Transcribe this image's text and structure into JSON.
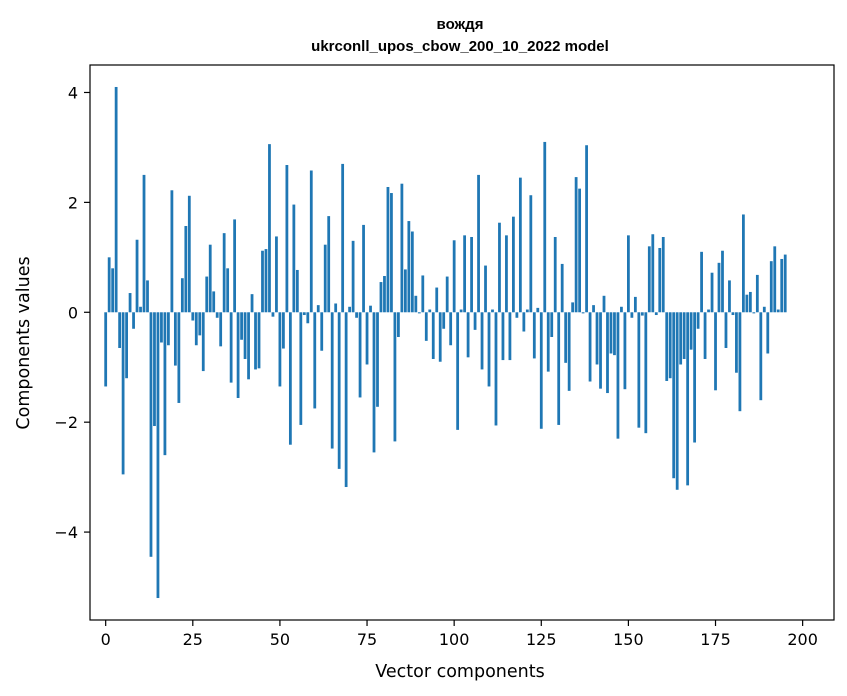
{
  "chart_data": {
    "type": "bar",
    "title_line1": "вождя",
    "title_line2": "ukrconll_upos_cbow_200_10_2022 model",
    "xlabel": "Vector components",
    "ylabel": "Components values",
    "xlim": [
      -4.5,
      209
    ],
    "ylim": [
      -5.6,
      4.5
    ],
    "x_ticks": [
      0,
      25,
      50,
      75,
      100,
      125,
      150,
      175,
      200
    ],
    "y_ticks": [
      -4,
      -2,
      0,
      2,
      4
    ],
    "y_tick_labels": [
      "−4",
      "−2",
      "0",
      "2",
      "4"
    ],
    "bar_color": "#1f77b4",
    "values": [
      -1.35,
      1.0,
      0.8,
      4.1,
      -0.65,
      -2.95,
      -1.2,
      0.35,
      -0.3,
      1.32,
      0.1,
      2.5,
      0.58,
      -4.45,
      -2.07,
      -5.2,
      -0.55,
      -2.6,
      -0.6,
      2.22,
      -0.97,
      -1.65,
      0.62,
      1.57,
      2.12,
      -0.15,
      -0.6,
      -0.42,
      -1.07,
      0.65,
      1.23,
      0.38,
      -0.1,
      -0.62,
      1.44,
      0.8,
      -1.28,
      1.69,
      -1.56,
      -0.5,
      -0.85,
      -1.22,
      0.33,
      -1.04,
      -1.02,
      1.12,
      1.15,
      3.06,
      -0.08,
      1.38,
      -1.35,
      -0.66,
      2.68,
      -2.41,
      1.96,
      0.77,
      -2.05,
      -0.05,
      -0.2,
      2.58,
      -1.75,
      0.13,
      -0.7,
      1.23,
      1.75,
      -2.48,
      0.16,
      -2.85,
      2.7,
      -3.18,
      0.1,
      1.3,
      -0.1,
      -1.55,
      1.59,
      -0.95,
      0.12,
      -2.55,
      -1.72,
      0.55,
      0.66,
      2.28,
      2.17,
      -2.35,
      -0.45,
      2.34,
      0.78,
      1.66,
      1.47,
      0.3,
      -0.02,
      0.67,
      -0.52,
      0.05,
      -0.85,
      0.45,
      -0.9,
      -0.3,
      0.65,
      -0.6,
      1.31,
      -2.14,
      0.05,
      1.4,
      -0.82,
      1.37,
      -0.32,
      2.5,
      -1.04,
      0.85,
      -1.35,
      0.05,
      -2.06,
      1.63,
      -0.87,
      1.4,
      -0.87,
      1.74,
      -0.1,
      2.45,
      -0.35,
      0.05,
      2.13,
      -0.84,
      0.08,
      -2.12,
      3.1,
      -1.08,
      -0.45,
      1.37,
      -2.05,
      0.88,
      -0.92,
      -1.43,
      0.18,
      2.46,
      2.25,
      -0.02,
      3.04,
      -1.26,
      0.13,
      -0.95,
      -1.39,
      0.3,
      -1.47,
      -0.75,
      -0.78,
      -2.3,
      0.1,
      -1.4,
      1.4,
      -0.1,
      0.28,
      -2.1,
      -0.06,
      -2.2,
      1.2,
      1.42,
      -0.05,
      1.17,
      1.37,
      -1.25,
      -1.2,
      -3.02,
      -3.23,
      -0.95,
      -0.85,
      -3.15,
      -0.68,
      -2.37,
      -0.3,
      1.1,
      -0.85,
      0.05,
      0.72,
      -1.42,
      0.9,
      1.12,
      -0.65,
      0.58,
      -0.05,
      -1.1,
      -1.8,
      1.78,
      0.32,
      0.37,
      -0.02,
      0.68,
      -1.6,
      0.1,
      -0.75,
      0.93,
      1.2,
      0.05,
      0.97,
      1.05
    ]
  }
}
